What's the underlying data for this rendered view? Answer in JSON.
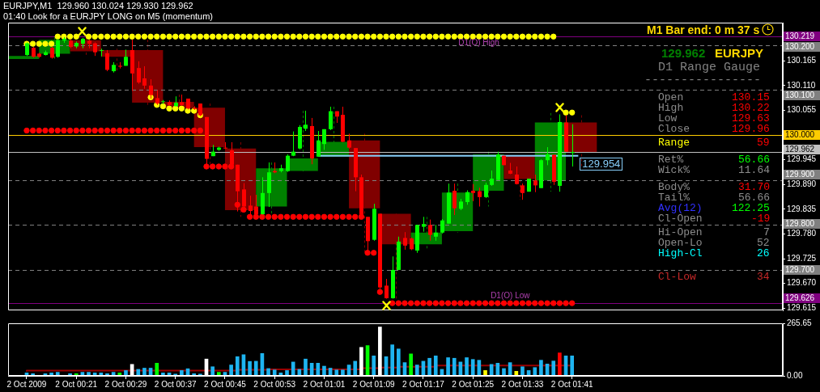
{
  "chart_data": [
    {
      "type": "candlestick",
      "title": "EURJPY,M1  129.960 130.024 129.930 129.962",
      "subtitle": "01:40 Look for a EURJPY LONG on M5 (momentum)",
      "x": [
        "2009-10-02T00:13",
        "2009-10-02T00:14",
        "2009-10-02T00:15",
        "2009-10-02T00:16",
        "2009-10-02T00:17",
        "2009-10-02T00:18",
        "2009-10-02T00:19",
        "2009-10-02T00:20",
        "2009-10-02T00:21",
        "2009-10-02T00:22",
        "2009-10-02T00:23",
        "2009-10-02T00:24",
        "2009-10-02T00:25",
        "2009-10-02T00:26",
        "2009-10-02T00:27",
        "2009-10-02T00:28",
        "2009-10-02T00:29",
        "2009-10-02T00:30",
        "2009-10-02T00:31",
        "2009-10-02T00:32",
        "2009-10-02T00:33",
        "2009-10-02T00:34",
        "2009-10-02T00:35",
        "2009-10-02T00:36",
        "2009-10-02T00:37",
        "2009-10-02T00:38",
        "2009-10-02T00:39",
        "2009-10-02T00:40",
        "2009-10-02T00:41",
        "2009-10-02T00:42",
        "2009-10-02T00:43",
        "2009-10-02T00:44",
        "2009-10-02T00:45",
        "2009-10-02T00:46",
        "2009-10-02T00:47",
        "2009-10-02T00:48",
        "2009-10-02T00:49",
        "2009-10-02T00:50",
        "2009-10-02T00:51",
        "2009-10-02T00:52",
        "2009-10-02T00:53",
        "2009-10-02T00:54",
        "2009-10-02T00:55",
        "2009-10-02T00:56",
        "2009-10-02T00:57",
        "2009-10-02T00:58",
        "2009-10-02T00:59",
        "2009-10-02T01:00",
        "2009-10-02T01:01",
        "2009-10-02T01:02",
        "2009-10-02T01:03",
        "2009-10-02T01:04",
        "2009-10-02T01:05",
        "2009-10-02T01:06",
        "2009-10-02T01:07",
        "2009-10-02T01:08",
        "2009-10-02T01:09",
        "2009-10-02T01:10",
        "2009-10-02T01:11",
        "2009-10-02T01:12",
        "2009-10-02T01:13",
        "2009-10-02T01:14",
        "2009-10-02T01:15",
        "2009-10-02T01:16",
        "2009-10-02T01:17",
        "2009-10-02T01:18",
        "2009-10-02T01:19",
        "2009-10-02T01:20",
        "2009-10-02T01:21",
        "2009-10-02T01:22",
        "2009-10-02T01:23",
        "2009-10-02T01:24",
        "2009-10-02T01:25",
        "2009-10-02T01:26",
        "2009-10-02T01:27",
        "2009-10-02T01:28",
        "2009-10-02T01:29",
        "2009-10-02T01:30",
        "2009-10-02T01:31",
        "2009-10-02T01:32",
        "2009-10-02T01:33",
        "2009-10-02T01:34",
        "2009-10-02T01:35",
        "2009-10-02T01:36",
        "2009-10-02T01:37",
        "2009-10-02T01:38",
        "2009-10-02T01:39",
        "2009-10-02T01:40",
        "2009-10-02T01:41"
      ],
      "xlim": [
        "2009-10-02T00:10",
        "2009-10-02T02:15"
      ],
      "ylim": [
        129.61,
        130.25
      ],
      "yticks": [
        130.165,
        {
          "value": 130.11,
          "label": "130.110"
        },
        130.055,
        129.945,
        {
          "value": 129.89,
          "label": "129.890"
        },
        129.835,
        {
          "value": 129.78,
          "label": "129.780"
        },
        129.725,
        {
          "value": 129.67,
          "label": "129.670"
        },
        129.615
      ],
      "tick_labels": "y",
      "series": [
        {
          "type": "candlestick",
          "x": [
            "2009-10-02T00:12:30",
            "2009-10-02T00:17:30",
            "2009-10-02T00:22:30",
            "2009-10-02T00:27:30",
            "2009-10-02T00:32:30",
            "2009-10-02T00:37:30",
            "2009-10-02T00:42:30",
            "2009-10-02T00:47:30",
            "2009-10-02T00:52:30",
            "2009-10-02T00:57:30",
            "2009-10-02T01:02:30",
            "2009-10-02T01:07:30",
            "2009-10-02T01:12:30",
            "2009-10-02T01:17:30",
            "2009-10-02T01:22:30",
            "2009-10-02T01:27:30",
            "2009-10-02T01:32:30",
            "2009-10-02T01:37:30",
            "2009-10-02T01:42:30"
          ],
          "ohlc": [
            [
              130.169,
              130.176,
              130.169,
              130.176
            ],
            [
              130.181,
              130.218,
              130.17,
              130.212
            ],
            [
              130.211,
              130.216,
              130.176,
              130.186
            ],
            [
              130.189,
              130.192,
              130.139,
              130.174
            ],
            [
              130.189,
              130.212,
              130.067,
              130.072
            ],
            [
              130.074,
              130.09,
              130.057,
              130.06
            ],
            [
              130.061,
              130.07,
              129.928,
              129.973
            ],
            [
              129.97,
              129.984,
              129.818,
              129.833
            ],
            [
              129.841,
              129.939,
              129.823,
              129.926
            ],
            [
              129.92,
              130.054,
              129.918,
              129.948
            ],
            [
              129.952,
              130.063,
              129.952,
              129.985
            ],
            [
              129.988,
              130.003,
              129.74,
              129.837
            ],
            [
              129.825,
              129.825,
              129.636,
              129.757
            ],
            [
              129.757,
              129.818,
              129.743,
              129.783
            ],
            [
              129.786,
              129.892,
              129.783,
              129.872
            ],
            [
              129.876,
              129.963,
              129.841,
              129.957
            ],
            [
              129.954,
              129.954,
              129.856,
              129.902
            ],
            [
              129.899,
              130.049,
              129.874,
              130.028
            ],
            [
              130.028,
              130.044,
              129.928,
              129.962
            ]
          ],
          "colors": [
            "#008000",
            "#008000",
            "#800000",
            "#800000",
            "#800000",
            "#800000",
            "#800000",
            "#800000",
            "#008000",
            "#008000",
            "#008000",
            "#800000",
            "#800000",
            "#008000",
            "#008000",
            "#008000",
            "#800000",
            "#008000",
            "#800000"
          ]
        },
        {
          "ohlc": [
            [
              130.178,
              130.206,
              130.176,
              130.204
            ],
            [
              130.194,
              130.196,
              130.172,
              130.174
            ],
            [
              130.181,
              130.183,
              130.172,
              130.174
            ],
            [
              130.178,
              130.188,
              130.177,
              130.184
            ],
            [
              130.194,
              130.197,
              130.17,
              130.172
            ],
            [
              130.174,
              130.214,
              130.172,
              130.211
            ],
            [
              130.21,
              130.218,
              130.205,
              130.214
            ],
            [
              130.21,
              130.213,
              130.193,
              130.196
            ],
            [
              130.197,
              130.208,
              130.193,
              130.205
            ],
            [
              130.203,
              130.216,
              130.193,
              130.214
            ],
            [
              130.21,
              130.212,
              130.193,
              130.203
            ],
            [
              130.204,
              130.206,
              130.176,
              130.184
            ],
            [
              130.189,
              130.192,
              130.175,
              130.189
            ],
            [
              130.182,
              130.189,
              130.142,
              130.145
            ],
            [
              130.142,
              130.162,
              130.139,
              130.156
            ],
            [
              130.154,
              130.162,
              130.148,
              130.152
            ],
            [
              130.154,
              130.19,
              130.154,
              130.174
            ],
            [
              130.189,
              130.212,
              130.098,
              130.137
            ],
            [
              130.149,
              130.164,
              130.114,
              130.117
            ],
            [
              130.126,
              130.153,
              130.103,
              130.11
            ],
            [
              130.11,
              130.124,
              130.081,
              130.089
            ],
            [
              130.082,
              130.1,
              130.067,
              130.07
            ],
            [
              130.074,
              130.078,
              130.069,
              130.075
            ],
            [
              130.073,
              130.077,
              130.065,
              130.067
            ],
            [
              130.064,
              130.086,
              130.064,
              130.072
            ],
            [
              130.073,
              130.09,
              130.065,
              130.067
            ],
            [
              130.081,
              130.081,
              130.057,
              130.059
            ],
            [
              130.06,
              130.064,
              130.056,
              130.058
            ],
            [
              130.07,
              130.07,
              130.042,
              130.044
            ],
            [
              130.04,
              130.04,
              129.928,
              129.947
            ],
            [
              129.953,
              129.978,
              129.953,
              129.963
            ],
            [
              129.967,
              129.974,
              129.965,
              129.972
            ],
            [
              129.972,
              129.984,
              129.969,
              129.97
            ],
            [
              129.966,
              129.984,
              129.934,
              129.934
            ],
            [
              129.934,
              129.934,
              129.83,
              129.875
            ],
            [
              129.879,
              129.893,
              129.834,
              129.841
            ],
            [
              129.843,
              129.865,
              129.818,
              129.831
            ],
            [
              129.841,
              129.867,
              129.823,
              129.824
            ],
            [
              129.824,
              129.906,
              129.823,
              129.871
            ],
            [
              129.871,
              129.939,
              129.84,
              129.917
            ],
            [
              129.92,
              129.939,
              129.915,
              129.917
            ],
            [
              129.92,
              129.934,
              129.917,
              129.926
            ],
            [
              129.92,
              129.957,
              129.918,
              129.954
            ],
            [
              129.954,
              130.008,
              129.953,
              129.963
            ],
            [
              129.97,
              130.022,
              129.968,
              130.018
            ],
            [
              130.014,
              130.054,
              130.009,
              130.023
            ],
            [
              130.02,
              130.038,
              129.935,
              129.948
            ],
            [
              129.952,
              130.009,
              129.952,
              129.988
            ],
            [
              129.98,
              130.013,
              129.967,
              130.013
            ],
            [
              130.013,
              130.063,
              130.011,
              130.053
            ],
            [
              130.053,
              130.053,
              130.027,
              130.041
            ],
            [
              130.045,
              130.063,
              129.984,
              129.985
            ],
            [
              129.988,
              130.003,
              129.97,
              129.972
            ],
            [
              129.971,
              129.971,
              129.875,
              129.906
            ],
            [
              129.906,
              129.912,
              129.818,
              129.818
            ],
            [
              129.818,
              129.818,
              129.74,
              129.764
            ],
            [
              129.767,
              129.847,
              129.765,
              129.836
            ],
            [
              129.825,
              129.825,
              129.651,
              129.661
            ],
            [
              129.665,
              129.68,
              129.636,
              129.637
            ],
            [
              129.637,
              129.73,
              129.636,
              129.7
            ],
            [
              129.7,
              129.774,
              129.7,
              129.763
            ],
            [
              129.771,
              129.784,
              129.745,
              129.754
            ],
            [
              129.77,
              129.772,
              129.744,
              129.746
            ],
            [
              129.743,
              129.8,
              129.738,
              129.8
            ],
            [
              129.796,
              129.818,
              129.785,
              129.802
            ],
            [
              129.8,
              129.812,
              129.765,
              129.778
            ],
            [
              129.774,
              129.8,
              129.765,
              129.783
            ],
            [
              129.783,
              129.813,
              129.781,
              129.81
            ],
            [
              129.803,
              129.892,
              129.803,
              129.872
            ],
            [
              129.876,
              129.892,
              129.822,
              129.837
            ],
            [
              129.836,
              129.858,
              129.833,
              129.852
            ],
            [
              129.851,
              129.877,
              129.845,
              129.873
            ],
            [
              129.876,
              129.891,
              129.853,
              129.871
            ],
            [
              129.875,
              129.883,
              129.841,
              129.862
            ],
            [
              129.862,
              129.894,
              129.86,
              129.889
            ],
            [
              129.889,
              129.921,
              129.887,
              129.903
            ],
            [
              129.9,
              129.963,
              129.9,
              129.957
            ],
            [
              129.954,
              129.954,
              129.933,
              129.933
            ],
            [
              129.921,
              129.938,
              129.913,
              129.914
            ],
            [
              129.912,
              129.93,
              129.89,
              129.891
            ],
            [
              129.888,
              129.892,
              129.856,
              129.871
            ],
            [
              129.874,
              129.903,
              129.874,
              129.903
            ],
            [
              129.899,
              129.912,
              129.873,
              129.888
            ],
            [
              129.882,
              129.946,
              129.882,
              129.944
            ],
            [
              129.944,
              129.973,
              129.933,
              129.957
            ],
            [
              129.956,
              129.956,
              129.889,
              129.896
            ],
            [
              129.887,
              130.046,
              129.874,
              130.029
            ],
            [
              130.028,
              130.044,
              129.963,
              129.963
            ],
            [
              129.96,
              130.024,
              129.93,
              129.962
            ]
          ],
          "colors": [
            "#00ff00",
            "#ff0000",
            "#ff0000",
            "#00ff00",
            "#ff0000",
            "#00ff00",
            "#00ff00",
            "#ff0000",
            "#00ff00",
            "#00ff00",
            "#ff0000",
            "#ff0000",
            "#00ff00",
            "#ff0000",
            "#00ff00",
            "#ff0000",
            "#00ff00",
            "#ff0000",
            "#ff0000",
            "#ff0000",
            "#ff0000",
            "#ff0000",
            "#00ff00",
            "#ff0000",
            "#00ff00",
            "#ff0000",
            "#ff0000",
            "#ff0000",
            "#ff0000",
            "#ff0000",
            "#00ff00",
            "#00ff00",
            "#ff0000",
            "#ff0000",
            "#ff0000",
            "#ff0000",
            "#ff0000",
            "#ff0000",
            "#00ff00",
            "#00ff00",
            "#ff0000",
            "#00ff00",
            "#00ff00",
            "#00ff00",
            "#00ff00",
            "#00ff00",
            "#ff0000",
            "#00ff00",
            "#00ff00",
            "#00ff00",
            "#ff0000",
            "#ff0000",
            "#ff0000",
            "#ff0000",
            "#ff0000",
            "#ff0000",
            "#00ff00",
            "#ff0000",
            "#ff0000",
            "#00ff00",
            "#00ff00",
            "#ff0000",
            "#ff0000",
            "#00ff00",
            "#00ff00",
            "#ff0000",
            "#00ff00",
            "#00ff00",
            "#00ff00",
            "#ff0000",
            "#00ff00",
            "#00ff00",
            "#ff0000",
            "#ff0000",
            "#00ff00",
            "#00ff00",
            "#00ff00",
            "#ff0000",
            "#ff0000",
            "#ff0000",
            "#ff0000",
            "#00ff00",
            "#ff0000",
            "#00ff00",
            "#00ff00",
            "#ff0000",
            "#00ff00",
            "#ff0000",
            "#00ff00"
          ]
        },
        {
          "type": "scatter",
          "marker": "circle",
          "color": "#ff0000",
          "values": [
            130.01,
            130.01,
            130.01,
            130.01,
            130.01,
            130.01,
            130.01,
            130.01,
            130.01,
            130.01,
            130.01,
            130.01,
            130.01,
            130.01,
            130.01,
            130.01,
            130.01,
            130.01,
            130.01,
            130.01,
            130.01,
            130.01,
            130.01,
            130.01,
            130.01,
            130.01,
            130.01,
            130.01,
            130.01,
            129.93,
            129.93,
            129.93,
            129.93,
            129.93,
            129.845,
            129.834,
            129.818,
            129.818,
            129.818,
            129.818,
            129.818,
            129.818,
            129.818,
            129.818,
            129.818,
            129.818,
            129.818,
            129.818,
            129.818,
            129.818,
            129.818,
            129.818,
            129.818,
            129.818,
            129.818,
            129.738,
            129.738,
            129.651,
            null,
            129.626,
            129.626,
            129.626,
            129.626,
            129.626,
            129.626,
            129.626,
            129.626,
            129.626,
            129.626,
            129.626,
            129.626,
            129.626,
            129.626,
            129.626,
            129.626,
            129.626,
            129.626,
            129.626,
            129.626,
            129.626,
            129.626,
            129.626,
            129.626,
            129.626,
            129.626,
            129.626,
            129.626,
            129.626,
            129.626
          ]
        },
        {
          "type": "scatter",
          "marker": "circle",
          "color": "#ffff00",
          "values": [
            null,
            null,
            null,
            null,
            null,
            130.219,
            130.219,
            130.219,
            130.219,
            null,
            130.219,
            130.219,
            130.219,
            130.219,
            130.219,
            130.219,
            130.219,
            130.219,
            130.219,
            130.219,
            130.219,
            130.219,
            130.219,
            130.219,
            130.219,
            130.219,
            130.219,
            130.219,
            130.219,
            130.219,
            130.219,
            130.219,
            130.219,
            130.219,
            130.219,
            130.219,
            130.219,
            130.219,
            130.219,
            130.219,
            130.219,
            130.219,
            130.219,
            130.219,
            130.219,
            130.219,
            130.219,
            130.219,
            130.219,
            130.219,
            130.219,
            130.219,
            130.219,
            130.219,
            130.219,
            130.219,
            130.219,
            130.219,
            130.219,
            130.219,
            130.219,
            130.219,
            130.219,
            130.219,
            130.219,
            130.219,
            130.219,
            130.219,
            130.219,
            130.219,
            130.219,
            130.219,
            130.219,
            130.219,
            130.219,
            130.219,
            130.219,
            130.219,
            130.219,
            130.219,
            130.219,
            130.219,
            130.219,
            130.219,
            130.219,
            130.219,
            null,
            null,
            null
          ]
        },
        {
          "type": "scatter",
          "marker": "circle",
          "color": "#ffff00",
          "values": [
            130.203,
            130.203,
            130.203,
            130.203,
            130.203,
            null,
            null,
            null,
            null,
            null,
            null,
            null,
            null,
            null,
            null,
            null,
            null,
            null,
            null,
            null,
            130.084,
            130.067,
            130.064,
            130.059,
            130.059,
            130.059,
            130.054,
            130.054,
            130.044,
            null,
            null,
            null,
            null,
            null,
            null,
            null,
            null,
            null,
            null,
            null,
            null,
            null,
            null,
            null,
            null,
            null,
            null,
            null,
            null,
            null,
            null,
            null,
            null,
            null,
            null,
            null,
            null,
            null,
            null,
            null,
            null,
            null,
            null,
            null,
            null,
            null,
            null,
            null,
            null,
            null,
            null,
            null,
            null,
            null,
            null,
            null,
            null,
            null,
            null,
            null,
            null,
            null,
            null,
            null,
            null,
            null,
            null,
            130.05,
            130.05
          ]
        },
        {
          "type": "line",
          "name": "129.954",
          "color": "#87cefa",
          "x": [
            "2009-10-02T01:00",
            "2009-10-02T01:42"
          ],
          "values": [
            129.954,
            129.954
          ]
        }
      ],
      "ref_lines": [
        {
          "axis": "y",
          "value": 130.219,
          "label": "130.219",
          "color": "#800080"
        },
        {
          "axis": "y",
          "value": 130.2,
          "label": "130.200",
          "color": "#808080",
          "line_style": "dashed"
        },
        {
          "axis": "y",
          "value": 130.1,
          "label": "130.100",
          "color": "#808080",
          "line_style": "dashed"
        },
        {
          "axis": "y",
          "value": 130.0,
          "label": "130.000",
          "color": "#ffcc00"
        },
        {
          "axis": "y",
          "value": 129.962,
          "label": "129.962",
          "color": "#c0c0c0"
        },
        {
          "axis": "y",
          "value": 129.9,
          "label": "129.900",
          "color": "#808080",
          "line_style": "dashed"
        },
        {
          "axis": "y",
          "value": 129.8,
          "label": "129.800",
          "color": "#808080",
          "line_style": "dashed"
        },
        {
          "axis": "y",
          "value": 129.7,
          "label": "129.700",
          "color": "#808080",
          "line_style": "dashed"
        },
        {
          "axis": "y",
          "value": 129.626,
          "label": "129.626",
          "color": "#800080"
        }
      ],
      "annotations": [
        "M1 Bar end: 0 m 37 s",
        "129.962",
        "EURJPY",
        "D1 Range Gauge",
        "----------------",
        "Open",
        "130.15",
        "High",
        "130.22",
        "Low",
        "129.63",
        "Close",
        "129.96",
        "Range",
        "59",
        "Ret%",
        "56.66",
        "Wick%",
        "11.64",
        "Body%",
        "31.70",
        "Tail%",
        "56.66",
        "Avg(12)",
        "122.25",
        "Cl-Open",
        "-19",
        "Hi-Open",
        "7",
        "Open-Lo",
        "52",
        "High-Cl",
        "26",
        "Cl-Low",
        "34",
        {
          "text": "D1(O) High",
          "x": "2009-10-02T01:26",
          "y": 130.219
        },
        {
          "text": "D1(O) Low",
          "x": "2009-10-02T01:31",
          "y": 129.626
        }
      ]
    },
    {
      "type": "bar",
      "x": [
        "2009-10-02T00:13",
        "2009-10-02T00:14",
        "2009-10-02T00:15",
        "2009-10-02T00:16",
        "2009-10-02T00:17",
        "2009-10-02T00:18",
        "2009-10-02T00:19",
        "2009-10-02T00:20",
        "2009-10-02T00:21",
        "2009-10-02T00:22",
        "2009-10-02T00:23",
        "2009-10-02T00:24",
        "2009-10-02T00:25",
        "2009-10-02T00:26",
        "2009-10-02T00:27",
        "2009-10-02T00:28",
        "2009-10-02T00:29",
        "2009-10-02T00:30",
        "2009-10-02T00:31",
        "2009-10-02T00:32",
        "2009-10-02T00:33",
        "2009-10-02T00:34",
        "2009-10-02T00:35",
        "2009-10-02T00:36",
        "2009-10-02T00:37",
        "2009-10-02T00:38",
        "2009-10-02T00:39",
        "2009-10-02T00:40",
        "2009-10-02T00:41",
        "2009-10-02T00:42",
        "2009-10-02T00:43",
        "2009-10-02T00:44",
        "2009-10-02T00:45",
        "2009-10-02T00:46",
        "2009-10-02T00:47",
        "2009-10-02T00:48",
        "2009-10-02T00:49",
        "2009-10-02T00:50",
        "2009-10-02T00:51",
        "2009-10-02T00:52",
        "2009-10-02T00:53",
        "2009-10-02T00:54",
        "2009-10-02T00:55",
        "2009-10-02T00:56",
        "2009-10-02T00:57",
        "2009-10-02T00:58",
        "2009-10-02T00:59",
        "2009-10-02T01:00",
        "2009-10-02T01:01",
        "2009-10-02T01:02",
        "2009-10-02T01:03",
        "2009-10-02T01:04",
        "2009-10-02T01:05",
        "2009-10-02T01:06",
        "2009-10-02T01:07",
        "2009-10-02T01:08",
        "2009-10-02T01:09",
        "2009-10-02T01:10",
        "2009-10-02T01:11",
        "2009-10-02T01:12",
        "2009-10-02T01:13",
        "2009-10-02T01:14",
        "2009-10-02T01:15",
        "2009-10-02T01:16",
        "2009-10-02T01:17",
        "2009-10-02T01:18",
        "2009-10-02T01:19",
        "2009-10-02T01:20",
        "2009-10-02T01:21",
        "2009-10-02T01:22",
        "2009-10-02T01:23",
        "2009-10-02T01:24",
        "2009-10-02T01:25",
        "2009-10-02T01:26",
        "2009-10-02T01:27",
        "2009-10-02T01:28",
        "2009-10-02T01:29",
        "2009-10-02T01:30",
        "2009-10-02T01:31",
        "2009-10-02T01:32",
        "2009-10-02T01:33",
        "2009-10-02T01:34",
        "2009-10-02T01:35",
        "2009-10-02T01:36",
        "2009-10-02T01:37",
        "2009-10-02T01:38",
        "2009-10-02T01:39",
        "2009-10-02T01:40",
        "2009-10-02T01:41"
      ],
      "xlim": [
        "2009-10-02T00:10",
        "2009-10-02T02:15"
      ],
      "xticks": [
        {
          "value": "2009-10-02T00:13",
          "label": "2 Oct 2009"
        },
        {
          "value": "2009-10-02T00:21",
          "label": "2 Oct 00:21"
        },
        {
          "value": "2009-10-02T00:29",
          "label": "2 Oct 00:29"
        },
        {
          "value": "2009-10-02T00:37",
          "label": "2 Oct 00:37"
        },
        {
          "value": "2009-10-02T00:45",
          "label": "2 Oct 00:45"
        },
        {
          "value": "2009-10-02T00:53",
          "label": "2 Oct 00:53"
        },
        {
          "value": "2009-10-02T01:01",
          "label": "2 Oct 01:01"
        },
        {
          "value": "2009-10-02T01:09",
          "label": "2 Oct 01:09"
        },
        {
          "value": "2009-10-02T01:17",
          "label": "2 Oct 01:17"
        },
        {
          "value": "2009-10-02T01:25",
          "label": "2 Oct 01:25"
        },
        {
          "value": "2009-10-02T01:33",
          "label": "2 Oct 01:33"
        },
        {
          "value": "2009-10-02T01:41",
          "label": "2 Oct 01:41"
        }
      ],
      "ylim": [
        0,
        265.65
      ],
      "yticks": [
        265.65,
        {
          "value": 0,
          "label": "0.00"
        }
      ],
      "series": [
        {
          "values": [
            15,
            11,
            2,
            11,
            15,
            18,
            2,
            11,
            11,
            18,
            18,
            15,
            15,
            11,
            18,
            15,
            27,
            58,
            33,
            39,
            39,
            64,
            15,
            15,
            9,
            27,
            36,
            11,
            9,
            85,
            46,
            18,
            18,
            55,
            97,
            107,
            73,
            74,
            113,
            37,
            30,
            15,
            27,
            70,
            33,
            85,
            64,
            64,
            49,
            39,
            30,
            30,
            55,
            74,
            144,
            153,
            101,
            247,
            97,
            157,
            136,
            67,
            111,
            55,
            74,
            89,
            101,
            33,
            92,
            89,
            70,
            92,
            83,
            79,
            27,
            58,
            64,
            37,
            67,
            23,
            46,
            27,
            42,
            79,
            60,
            75,
            116,
            101,
            101
          ],
          "colors": [
            "#1eb4f0",
            "#1eb4f0",
            "#ffff00",
            "#1eb4f0",
            "#1eb4f0",
            "#1eb4f0",
            "#ffff00",
            "#1eb4f0",
            "#00ff00",
            "#1eb4f0",
            "#1eb4f0",
            "#1eb4f0",
            "#1eb4f0",
            "#1eb4f0",
            "#1eb4f0",
            "#00ff00",
            "#1eb4f0",
            "#ffffff",
            "#1eb4f0",
            "#1eb4f0",
            "#1eb4f0",
            "#00ff00",
            "#1eb4f0",
            "#1eb4f0",
            "#1eb4f0",
            "#1eb4f0",
            "#1eb4f0",
            "#1eb4f0",
            "#1eb4f0",
            "#ffffff",
            "#1eb4f0",
            "#00ff00",
            "#1eb4f0",
            "#1eb4f0",
            "#1eb4f0",
            "#1eb4f0",
            "#1eb4f0",
            "#1eb4f0",
            "#1eb4f0",
            "#1eb4f0",
            "#1eb4f0",
            "#1eb4f0",
            "#1eb4f0",
            "#1eb4f0",
            "#1eb4f0",
            "#1eb4f0",
            "#1eb4f0",
            "#1eb4f0",
            "#1eb4f0",
            "#1eb4f0",
            "#1eb4f0",
            "#1eb4f0",
            "#1eb4f0",
            "#1eb4f0",
            "#ffffff",
            "#00ff00",
            "#1eb4f0",
            "#ffffff",
            "#1eb4f0",
            "#1eb4f0",
            "#1eb4f0",
            "#1eb4f0",
            "#00ff00",
            "#1eb4f0",
            "#1eb4f0",
            "#1eb4f0",
            "#1eb4f0",
            "#1eb4f0",
            "#1eb4f0",
            "#1eb4f0",
            "#1eb4f0",
            "#1eb4f0",
            "#1eb4f0",
            "#1eb4f0",
            "#ffff00",
            "#1eb4f0",
            "#1eb4f0",
            "#1eb4f0",
            "#1eb4f0",
            "#ffff00",
            "#1eb4f0",
            "#1eb4f0",
            "#1eb4f0",
            "#1eb4f0",
            "#1eb4f0",
            "#1eb4f0",
            "#ff0000",
            "#1eb4f0",
            "#1eb4f0"
          ]
        },
        {
          "type": "step",
          "color": "#990000",
          "x": [
            "2009-10-02T00:13",
            "2009-10-02T00:47",
            "2009-10-02T00:52",
            "2009-10-02T01:07",
            "2009-10-02T01:10",
            "2009-10-02T01:13",
            "2009-10-02T01:19",
            "2009-10-02T01:27",
            "2009-10-02T01:41"
          ],
          "values": [
            21,
            27,
            31,
            33,
            39,
            42,
            46,
            52,
            52
          ]
        }
      ]
    }
  ]
}
